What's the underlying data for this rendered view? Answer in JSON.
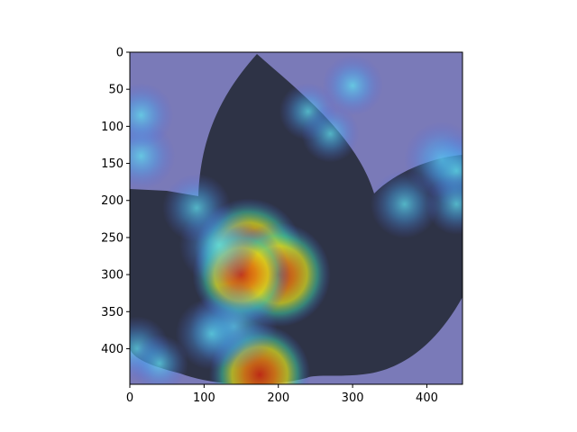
{
  "chart_data": {
    "type": "heatmap",
    "title": "",
    "xlabel": "",
    "ylabel": "",
    "xlim": [
      0,
      448
    ],
    "ylim": [
      448,
      0
    ],
    "x_ticks": [
      0,
      100,
      200,
      300,
      400
    ],
    "y_ticks": [
      0,
      50,
      100,
      150,
      200,
      250,
      300,
      350,
      400
    ],
    "x_tick_labels": [
      "0",
      "100",
      "200",
      "300",
      "400"
    ],
    "y_tick_labels": [
      "0",
      "50",
      "100",
      "150",
      "200",
      "250",
      "300",
      "350",
      "400"
    ],
    "colormap": "jet",
    "overlay_alpha": 0.5,
    "background_image": "dark leaf (cotton-like) photo under heatmap overlay",
    "hotspots": [
      {
        "x": 160,
        "y": 270,
        "intensity": 1.0
      },
      {
        "x": 200,
        "y": 300,
        "intensity": 0.95
      },
      {
        "x": 150,
        "y": 300,
        "intensity": 0.85
      },
      {
        "x": 120,
        "y": 260,
        "intensity": 0.6
      },
      {
        "x": 175,
        "y": 435,
        "intensity": 0.9
      },
      {
        "x": 140,
        "y": 370,
        "intensity": 0.7
      },
      {
        "x": 110,
        "y": 380,
        "intensity": 0.5
      },
      {
        "x": 90,
        "y": 210,
        "intensity": 0.45
      },
      {
        "x": 15,
        "y": 140,
        "intensity": 0.45
      },
      {
        "x": 15,
        "y": 85,
        "intensity": 0.4
      },
      {
        "x": 420,
        "y": 145,
        "intensity": 0.55
      },
      {
        "x": 440,
        "y": 160,
        "intensity": 0.5
      },
      {
        "x": 370,
        "y": 205,
        "intensity": 0.45
      },
      {
        "x": 300,
        "y": 45,
        "intensity": 0.35
      },
      {
        "x": 10,
        "y": 400,
        "intensity": 0.4
      },
      {
        "x": 240,
        "y": 80,
        "intensity": 0.3
      },
      {
        "x": 270,
        "y": 110,
        "intensity": 0.3
      },
      {
        "x": 440,
        "y": 205,
        "intensity": 0.35
      },
      {
        "x": 40,
        "y": 420,
        "intensity": 0.3
      }
    ]
  },
  "colors": {
    "axes_frame": "#000000",
    "base_overlay": "#7a7ab8",
    "leaf": "#2e3346"
  }
}
